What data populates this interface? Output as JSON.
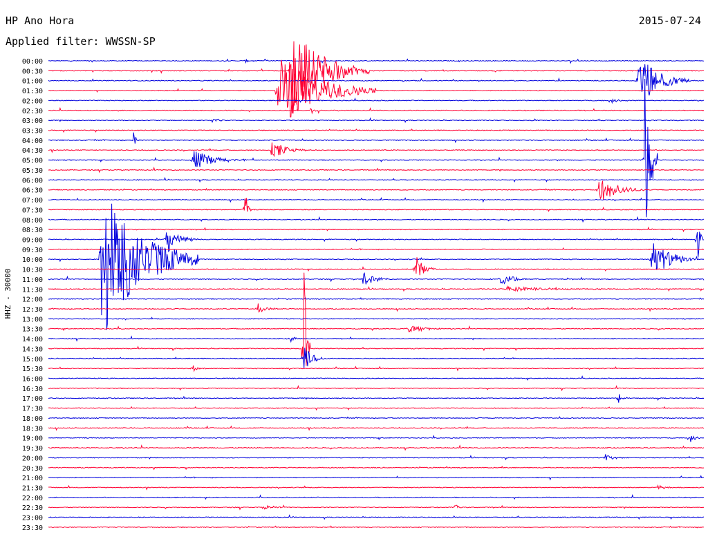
{
  "header": {
    "station": "HP Ano Hora",
    "date": "2015-07-24",
    "filter": "Applied filter: WWSSN-SP"
  },
  "chart_data": {
    "type": "line",
    "title": "HP Ano Hora",
    "ylabel": "HHZ - 30000",
    "colors": [
      "#0000dd",
      "#ff0033"
    ],
    "rows": [
      "00:00",
      "00:30",
      "01:00",
      "01:30",
      "02:00",
      "02:30",
      "03:00",
      "03:30",
      "04:00",
      "04:30",
      "05:00",
      "05:30",
      "06:00",
      "06:30",
      "07:00",
      "07:30",
      "08:00",
      "08:30",
      "09:00",
      "09:30",
      "10:00",
      "10:30",
      "11:00",
      "11:30",
      "12:00",
      "12:30",
      "13:00",
      "13:30",
      "14:00",
      "14:30",
      "15:00",
      "15:30",
      "16:00",
      "16:30",
      "17:00",
      "17:30",
      "18:00",
      "18:30",
      "19:00",
      "19:30",
      "20:00",
      "20:30",
      "21:00",
      "21:30",
      "22:00",
      "22:30",
      "23:00",
      "23:30"
    ],
    "events": [
      {
        "row": 0,
        "x": 0.3,
        "amp": 4,
        "dur": 0.01
      },
      {
        "row": 0,
        "x": 0.33,
        "amp": 3,
        "dur": 0.01
      },
      {
        "row": 1,
        "x": 0.37,
        "amp": 70,
        "dur": 0.12
      },
      {
        "row": 2,
        "x": 0.9,
        "amp": 40,
        "dur": 0.08
      },
      {
        "row": 3,
        "x": 0.35,
        "amp": 60,
        "dur": 0.15
      },
      {
        "row": 4,
        "x": 0.86,
        "amp": 3,
        "dur": 0.03
      },
      {
        "row": 5,
        "x": 0.4,
        "amp": 3,
        "dur": 0.02
      },
      {
        "row": 6,
        "x": 0.25,
        "amp": 3,
        "dur": 0.03
      },
      {
        "row": 8,
        "x": 0.13,
        "amp": 12,
        "dur": 0.01
      },
      {
        "row": 9,
        "x": 0.34,
        "amp": 14,
        "dur": 0.06
      },
      {
        "row": 10,
        "x": 0.22,
        "amp": 16,
        "dur": 0.08
      },
      {
        "row": 10,
        "x": 0.91,
        "amp": 190,
        "dur": 0.02
      },
      {
        "row": 13,
        "x": 0.84,
        "amp": 20,
        "dur": 0.07
      },
      {
        "row": 15,
        "x": 0.3,
        "amp": 35,
        "dur": 0.01
      },
      {
        "row": 18,
        "x": 0.18,
        "amp": 22,
        "dur": 0.05
      },
      {
        "row": 18,
        "x": 0.99,
        "amp": 40,
        "dur": 0.01
      },
      {
        "row": 20,
        "x": 0.08,
        "amp": 125,
        "dur": 0.15
      },
      {
        "row": 20,
        "x": 0.92,
        "amp": 30,
        "dur": 0.07
      },
      {
        "row": 21,
        "x": 0.56,
        "amp": 22,
        "dur": 0.03
      },
      {
        "row": 22,
        "x": 0.48,
        "amp": 12,
        "dur": 0.04
      },
      {
        "row": 22,
        "x": 0.69,
        "amp": 14,
        "dur": 0.04
      },
      {
        "row": 23,
        "x": 0.7,
        "amp": 4,
        "dur": 0.15
      },
      {
        "row": 25,
        "x": 0.32,
        "amp": 8,
        "dur": 0.03
      },
      {
        "row": 27,
        "x": 0.55,
        "amp": 7,
        "dur": 0.06
      },
      {
        "row": 28,
        "x": 0.37,
        "amp": 8,
        "dur": 0.01
      },
      {
        "row": 29,
        "x": 0.39,
        "amp": 150,
        "dur": 0.01
      },
      {
        "row": 30,
        "x": 0.39,
        "amp": 25,
        "dur": 0.03
      },
      {
        "row": 31,
        "x": 0.22,
        "amp": 6,
        "dur": 0.02
      },
      {
        "row": 34,
        "x": 0.87,
        "amp": 10,
        "dur": 0.01
      },
      {
        "row": 38,
        "x": 0.98,
        "amp": 6,
        "dur": 0.02
      },
      {
        "row": 40,
        "x": 0.85,
        "amp": 5,
        "dur": 0.03
      },
      {
        "row": 43,
        "x": 0.93,
        "amp": 4,
        "dur": 0.03
      },
      {
        "row": 45,
        "x": 0.33,
        "amp": 5,
        "dur": 0.03
      },
      {
        "row": 45,
        "x": 0.62,
        "amp": 8,
        "dur": 0.01
      }
    ]
  }
}
